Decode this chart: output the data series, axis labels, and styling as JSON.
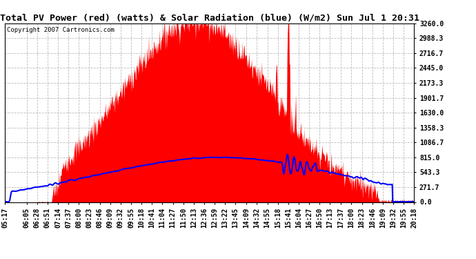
{
  "title": "Total PV Power (red) (watts) & Solar Radiation (blue) (W/m2) Sun Jul 1 20:31",
  "copyright": "Copyright 2007 Cartronics.com",
  "y_ticks": [
    0.0,
    271.7,
    543.3,
    815.0,
    1086.7,
    1358.3,
    1630.0,
    1901.7,
    2173.3,
    2445.0,
    2716.7,
    2988.3,
    3260.0
  ],
  "x_labels": [
    "05:17",
    "06:05",
    "06:28",
    "06:51",
    "07:14",
    "07:37",
    "08:00",
    "08:23",
    "08:46",
    "09:09",
    "09:32",
    "09:55",
    "10:18",
    "10:41",
    "11:04",
    "11:27",
    "11:50",
    "12:13",
    "12:36",
    "12:59",
    "13:22",
    "13:45",
    "14:09",
    "14:32",
    "14:55",
    "15:18",
    "15:41",
    "16:04",
    "16:27",
    "16:50",
    "17:13",
    "17:37",
    "18:00",
    "18:23",
    "18:46",
    "19:09",
    "19:32",
    "19:55",
    "20:18"
  ],
  "pv_color": "#FF0000",
  "solar_color": "#0000FF",
  "background_color": "#FFFFFF",
  "plot_bg_color": "#FFFFFF",
  "grid_color": "#BBBBBB",
  "title_fontsize": 9.5,
  "copyright_fontsize": 6.5,
  "tick_fontsize": 7,
  "y_max": 3260.0,
  "y_min": 0.0,
  "pv_peak": 3260.0,
  "pv_peak_t": 12.3,
  "pv_sigma": 2.8,
  "solar_peak": 815.0,
  "solar_peak_t": 13.2,
  "solar_sigma": 4.5
}
